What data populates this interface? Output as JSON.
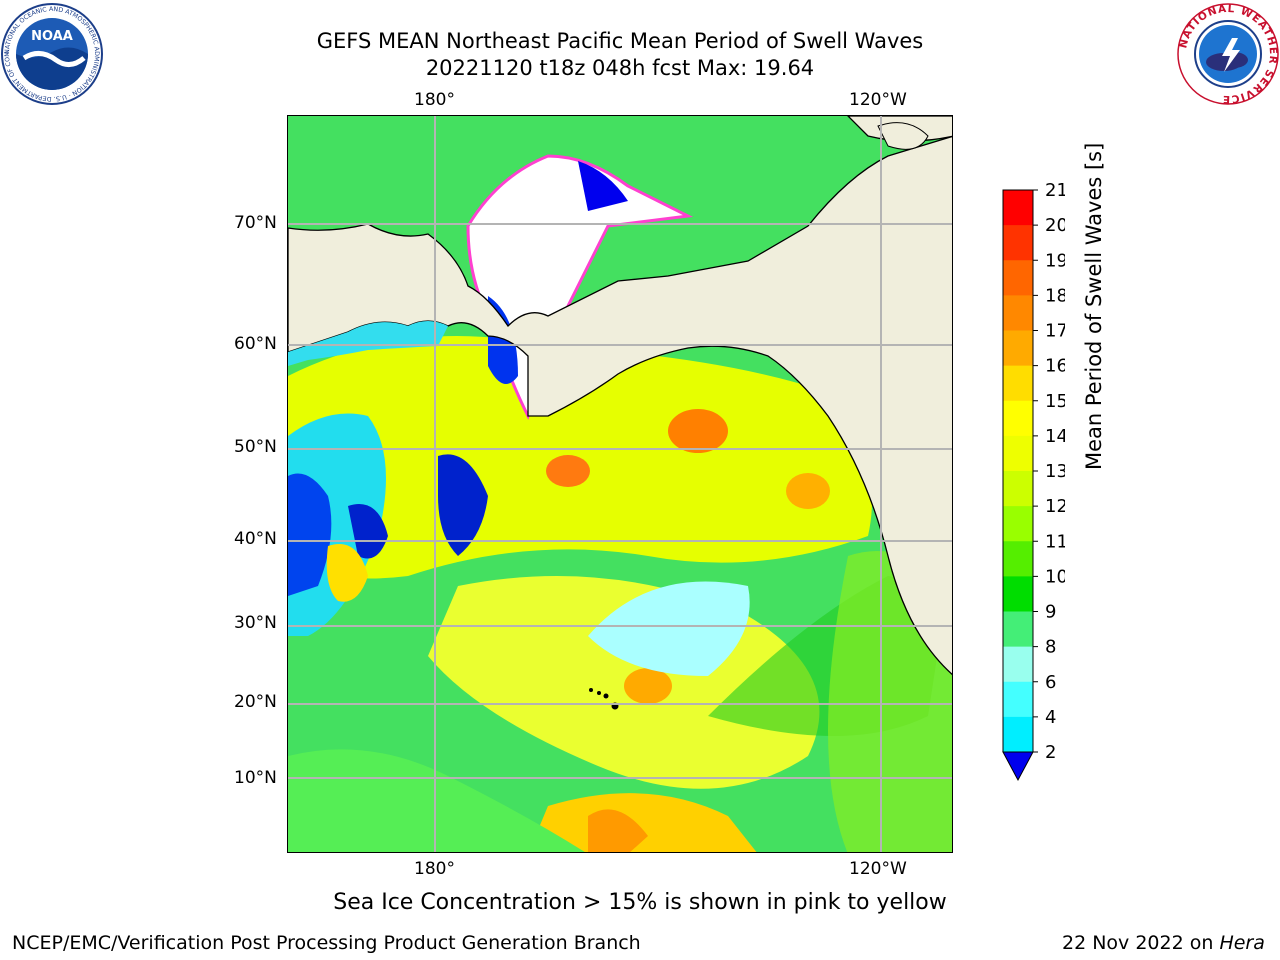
{
  "title": {
    "line1": "GEFS MEAN Northeast Pacific Mean Period of Swell Waves",
    "line2": "20221120 t18z 048h fcst   Max: 19.64"
  },
  "map": {
    "lon_ticks_top": [
      "180°",
      "120°W"
    ],
    "lon_ticks_bottom": [
      "180°",
      "120°W"
    ],
    "lat_ticks": [
      "70°N",
      "60°N",
      "50°N",
      "40°N",
      "30°N",
      "20°N",
      "10°N"
    ]
  },
  "colorbar": {
    "title": "Mean Period of Swell Waves [s]",
    "ticks": [
      "21",
      "20",
      "19",
      "18",
      "17",
      "16",
      "15",
      "14",
      "13",
      "12",
      "11",
      "10",
      "9",
      "8",
      "6",
      "4",
      "2"
    ],
    "colors": [
      "#ff0000",
      "#ff3300",
      "#ff6600",
      "#ff8800",
      "#ffaa00",
      "#ffdd00",
      "#ffff00",
      "#eeff00",
      "#ccff00",
      "#99ff00",
      "#55ee00",
      "#00dd00",
      "#44ee77",
      "#99ffee",
      "#44ffff",
      "#00eeff",
      "#00aaff",
      "#0044ff"
    ],
    "extend_color": "#0000ee"
  },
  "note": "Sea Ice Concentration > 15% is shown in pink to yellow",
  "footer": {
    "left": "NCEP/EMC/Verification Post Processing Product Generation Branch",
    "date": "22 Nov 2022 on ",
    "machine": "Hera"
  },
  "logos": {
    "left": "NOAA",
    "left_ring": "NATIONAL OCEANIC AND ATMOSPHERIC ADMINISTRATION · U.S. DEPARTMENT OF COMMERCE",
    "right_ring": "NATIONAL WEATHER SERVICE"
  }
}
